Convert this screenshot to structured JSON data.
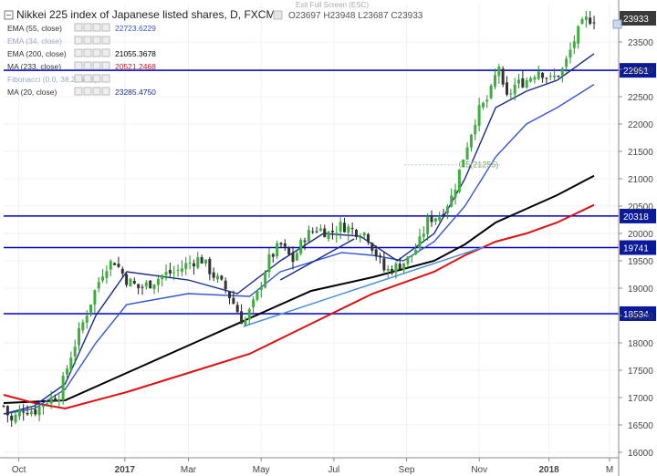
{
  "header": {
    "title": "Nikkei 225 index of Japanese listed shares, D, FXCM",
    "ohlc": "O23697 H23948 L23687 C23933",
    "exit_fullscreen": "Exit Full Screen (ESC)"
  },
  "indicators": [
    {
      "label": "EMA (55, close)",
      "value": "22723.6229",
      "color": "#3355cc",
      "faded": false
    },
    {
      "label": "EMA (34, close)",
      "value": "",
      "color": "#999999",
      "faded": true
    },
    {
      "label": "EMA (200, close)",
      "value": "21055.3678",
      "color": "#000000",
      "faded": false
    },
    {
      "label": "MA (233, close)",
      "value": "20521.2468",
      "color": "#dd1111",
      "faded": false
    },
    {
      "label": "Fibonacci (0.0, 38.2, 61.8)",
      "value": "",
      "color": "#999999",
      "faded": true
    },
    {
      "label": "MA (20, close)",
      "value": "23285.4750",
      "color": "#1a2a8a",
      "faded": false
    }
  ],
  "chart_data": {
    "type": "candlestick",
    "title": "Nikkei 225 index of Japanese listed shares, D, FXCM",
    "x_labels": [
      "Oct",
      "2017",
      "Mar",
      "May",
      "Jul",
      "Sep",
      "Nov",
      "2018",
      "M"
    ],
    "y_ticks": [
      16000,
      16500,
      17000,
      17500,
      18000,
      18500,
      19000,
      19500,
      20000,
      20500,
      21000,
      21500,
      22000,
      22500,
      23000,
      23500
    ],
    "y_range": [
      15900,
      24200
    ],
    "current_price": 23933,
    "horizontal_levels": [
      22981,
      20318,
      19741,
      18534
    ],
    "price_path": [
      [
        0,
        16850
      ],
      [
        0.012,
        16550
      ],
      [
        0.03,
        16800
      ],
      [
        0.05,
        16750
      ],
      [
        0.07,
        16950
      ],
      [
        0.09,
        17050
      ],
      [
        0.11,
        17800
      ],
      [
        0.13,
        18400
      ],
      [
        0.15,
        19000
      ],
      [
        0.165,
        19400
      ],
      [
        0.18,
        19500
      ],
      [
        0.2,
        19150
      ],
      [
        0.22,
        19000
      ],
      [
        0.24,
        19100
      ],
      [
        0.26,
        19250
      ],
      [
        0.28,
        19300
      ],
      [
        0.3,
        19450
      ],
      [
        0.32,
        19550
      ],
      [
        0.34,
        19250
      ],
      [
        0.36,
        19000
      ],
      [
        0.375,
        18700
      ],
      [
        0.39,
        18350
      ],
      [
        0.41,
        18800
      ],
      [
        0.43,
        19500
      ],
      [
        0.45,
        19800
      ],
      [
        0.47,
        19500
      ],
      [
        0.49,
        19950
      ],
      [
        0.51,
        20100
      ],
      [
        0.53,
        20000
      ],
      [
        0.55,
        20150
      ],
      [
        0.57,
        20050
      ],
      [
        0.59,
        20000
      ],
      [
        0.6,
        19750
      ],
      [
        0.62,
        19300
      ],
      [
        0.64,
        19400
      ],
      [
        0.66,
        19550
      ],
      [
        0.675,
        19800
      ],
      [
        0.69,
        20250
      ],
      [
        0.71,
        20350
      ],
      [
        0.73,
        20700
      ],
      [
        0.75,
        21500
      ],
      [
        0.77,
        22200
      ],
      [
        0.79,
        22500
      ],
      [
        0.805,
        23100
      ],
      [
        0.815,
        22400
      ],
      [
        0.83,
        22700
      ],
      [
        0.85,
        22800
      ],
      [
        0.87,
        23000
      ],
      [
        0.89,
        22800
      ],
      [
        0.91,
        23000
      ],
      [
        0.93,
        23600
      ],
      [
        0.945,
        23900
      ],
      [
        0.96,
        23933
      ]
    ],
    "series": [
      {
        "name": "EMA (200, close)",
        "color": "#000000",
        "points": [
          [
            0,
            16900
          ],
          [
            0.1,
            16950
          ],
          [
            0.2,
            17450
          ],
          [
            0.3,
            17950
          ],
          [
            0.4,
            18450
          ],
          [
            0.5,
            18950
          ],
          [
            0.6,
            19200
          ],
          [
            0.7,
            19500
          ],
          [
            0.75,
            19800
          ],
          [
            0.8,
            20200
          ],
          [
            0.85,
            20450
          ],
          [
            0.9,
            20700
          ],
          [
            0.96,
            21055
          ]
        ]
      },
      {
        "name": "MA (233, close)",
        "color": "#dd1111",
        "points": [
          [
            0,
            17050
          ],
          [
            0.05,
            16900
          ],
          [
            0.1,
            16800
          ],
          [
            0.2,
            17100
          ],
          [
            0.3,
            17450
          ],
          [
            0.4,
            17800
          ],
          [
            0.5,
            18350
          ],
          [
            0.6,
            18900
          ],
          [
            0.7,
            19300
          ],
          [
            0.75,
            19600
          ],
          [
            0.8,
            19850
          ],
          [
            0.85,
            20000
          ],
          [
            0.9,
            20200
          ],
          [
            0.96,
            20521
          ]
        ]
      },
      {
        "name": "EMA (55, close)",
        "color": "#3355cc",
        "points": [
          [
            0,
            16700
          ],
          [
            0.05,
            16800
          ],
          [
            0.1,
            17150
          ],
          [
            0.15,
            18000
          ],
          [
            0.2,
            18700
          ],
          [
            0.3,
            18900
          ],
          [
            0.4,
            18850
          ],
          [
            0.45,
            19300
          ],
          [
            0.55,
            19650
          ],
          [
            0.6,
            19600
          ],
          [
            0.65,
            19500
          ],
          [
            0.7,
            19850
          ],
          [
            0.75,
            20500
          ],
          [
            0.8,
            21400
          ],
          [
            0.85,
            22000
          ],
          [
            0.9,
            22300
          ],
          [
            0.96,
            22724
          ]
        ]
      },
      {
        "name": "MA (20, close)",
        "color": "#1a2a8a",
        "points": [
          [
            0,
            16700
          ],
          [
            0.05,
            16850
          ],
          [
            0.1,
            17250
          ],
          [
            0.15,
            18500
          ],
          [
            0.2,
            19300
          ],
          [
            0.3,
            19150
          ],
          [
            0.38,
            18900
          ],
          [
            0.45,
            19500
          ],
          [
            0.52,
            20000
          ],
          [
            0.58,
            19950
          ],
          [
            0.64,
            19500
          ],
          [
            0.7,
            20000
          ],
          [
            0.75,
            21000
          ],
          [
            0.8,
            22300
          ],
          [
            0.85,
            22600
          ],
          [
            0.9,
            22800
          ],
          [
            0.96,
            23285
          ]
        ]
      }
    ],
    "trendlines": [
      {
        "color": "#4a90d9",
        "from": [
          0.39,
          18300
        ],
        "to": [
          0.78,
          19750
        ]
      },
      {
        "color": "#1a2a8a",
        "from": [
          0.45,
          19150
        ],
        "to": [
          0.57,
          19900
        ]
      }
    ],
    "annotations": [
      {
        "text": "0.5(21255)",
        "x": 0.74,
        "y": 21255
      }
    ]
  }
}
